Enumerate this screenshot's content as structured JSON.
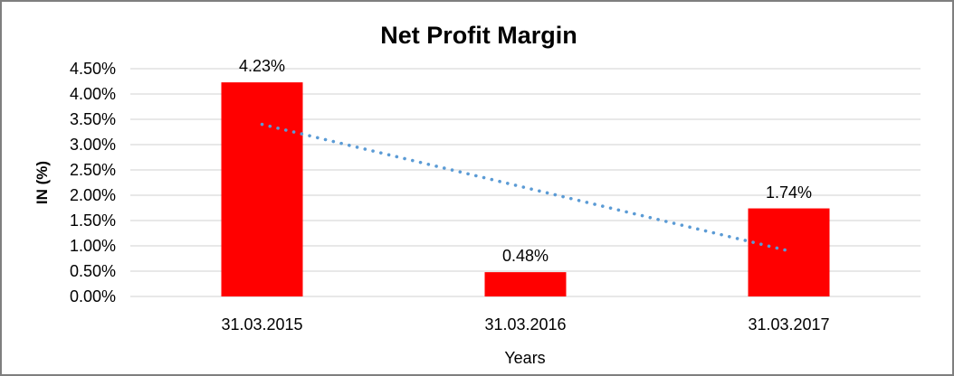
{
  "chart_data": {
    "type": "bar",
    "title": "Net Profit Margin",
    "xlabel": "Years",
    "ylabel": "IN (%)",
    "categories": [
      "31.03.2015",
      "31.03.2016",
      "31.03.2017"
    ],
    "values": [
      4.23,
      0.48,
      1.74
    ],
    "data_labels": [
      "4.23%",
      "0.48%",
      "1.74%"
    ],
    "ylim": [
      0,
      4.5
    ],
    "ytick_step": 0.5,
    "ytick_labels": [
      "0.00%",
      "0.50%",
      "1.00%",
      "1.50%",
      "2.00%",
      "2.50%",
      "3.00%",
      "3.50%",
      "4.00%",
      "4.50%"
    ],
    "grid": true,
    "legend": "none",
    "bar_color": "#FF0000",
    "gridline_color": "#D9D9D9",
    "text_color": "#000000",
    "trendline": {
      "type": "linear",
      "style": "dotted",
      "color": "#5B9BD5",
      "start_value": 3.4,
      "end_value": 0.9
    }
  }
}
